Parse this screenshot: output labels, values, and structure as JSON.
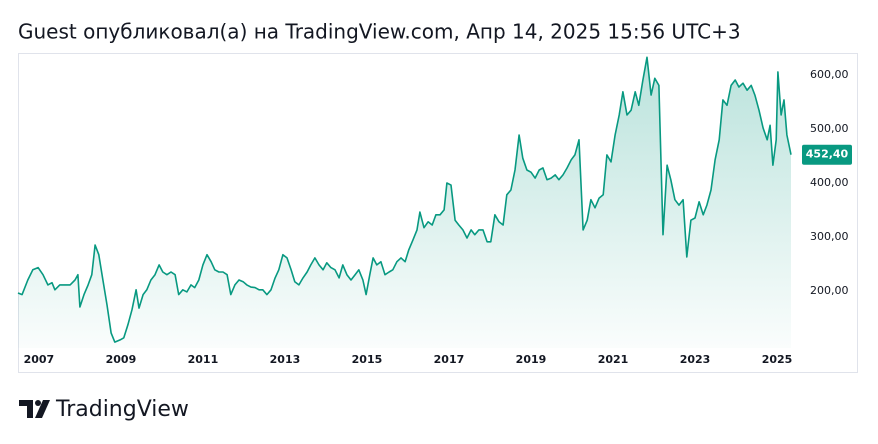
{
  "chart_data": {
    "type": "line",
    "title": "Guest опубликовал(а) на TradingView.com, Апр 14, 2025 15:56 UTC+3",
    "brand": "TradingView",
    "color": "#089981",
    "x": [
      2006.49,
      2006.59,
      2006.73,
      2006.85,
      2006.98,
      2007.1,
      2007.22,
      2007.32,
      2007.39,
      2007.51,
      2007.63,
      2007.76,
      2007.88,
      2007.95,
      2008.0,
      2008.1,
      2008.2,
      2008.29,
      2008.37,
      2008.46,
      2008.56,
      2008.66,
      2008.76,
      2008.85,
      2008.98,
      2009.07,
      2009.17,
      2009.27,
      2009.37,
      2009.44,
      2009.54,
      2009.63,
      2009.73,
      2009.83,
      2009.93,
      2010.02,
      2010.12,
      2010.22,
      2010.32,
      2010.41,
      2010.51,
      2010.61,
      2010.71,
      2010.8,
      2010.9,
      2011.0,
      2011.1,
      2011.2,
      2011.29,
      2011.39,
      2011.49,
      2011.59,
      2011.68,
      2011.78,
      2011.88,
      2011.98,
      2012.07,
      2012.17,
      2012.27,
      2012.37,
      2012.46,
      2012.56,
      2012.66,
      2012.76,
      2012.85,
      2012.95,
      2013.05,
      2013.15,
      2013.24,
      2013.34,
      2013.44,
      2013.54,
      2013.63,
      2013.73,
      2013.83,
      2013.93,
      2014.02,
      2014.12,
      2014.22,
      2014.32,
      2014.41,
      2014.51,
      2014.61,
      2014.71,
      2014.8,
      2014.9,
      2014.98,
      2015.07,
      2015.15,
      2015.24,
      2015.34,
      2015.44,
      2015.54,
      2015.63,
      2015.73,
      2015.83,
      2015.93,
      2016.02,
      2016.12,
      2016.22,
      2016.29,
      2016.39,
      2016.49,
      2016.59,
      2016.68,
      2016.78,
      2016.88,
      2016.95,
      2017.05,
      2017.15,
      2017.24,
      2017.34,
      2017.44,
      2017.54,
      2017.63,
      2017.73,
      2017.83,
      2017.93,
      2018.02,
      2018.12,
      2018.22,
      2018.32,
      2018.41,
      2018.51,
      2018.61,
      2018.71,
      2018.8,
      2018.9,
      2019.0,
      2019.1,
      2019.2,
      2019.29,
      2019.39,
      2019.49,
      2019.59,
      2019.68,
      2019.78,
      2019.88,
      2019.98,
      2020.07,
      2020.17,
      2020.27,
      2020.37,
      2020.46,
      2020.56,
      2020.66,
      2020.76,
      2020.85,
      2020.95,
      2021.05,
      2021.15,
      2021.24,
      2021.34,
      2021.44,
      2021.54,
      2021.63,
      2021.73,
      2021.83,
      2021.93,
      2022.02,
      2022.12,
      2022.22,
      2022.32,
      2022.41,
      2022.51,
      2022.61,
      2022.71,
      2022.8,
      2022.9,
      2023.0,
      2023.1,
      2023.2,
      2023.29,
      2023.39,
      2023.49,
      2023.59,
      2023.68,
      2023.78,
      2023.88,
      2023.98,
      2024.07,
      2024.17,
      2024.27,
      2024.37,
      2024.46,
      2024.56,
      2024.66,
      2024.76,
      2024.83,
      2024.9,
      2024.98,
      2025.02,
      2025.1,
      2025.17,
      2025.24,
      2025.34
    ],
    "values": [
      196,
      193,
      220,
      239,
      243,
      230,
      211,
      215,
      202,
      211,
      211,
      211,
      220,
      230,
      170,
      193,
      211,
      230,
      285,
      267,
      220,
      174,
      122,
      105,
      109,
      113,
      137,
      165,
      202,
      168,
      193,
      202,
      220,
      230,
      248,
      235,
      230,
      235,
      230,
      193,
      202,
      198,
      211,
      206,
      220,
      248,
      267,
      254,
      239,
      235,
      235,
      230,
      193,
      211,
      220,
      217,
      211,
      207,
      206,
      202,
      202,
      193,
      202,
      224,
      239,
      267,
      261,
      239,
      217,
      211,
      224,
      235,
      248,
      261,
      248,
      239,
      252,
      243,
      239,
      224,
      248,
      230,
      220,
      230,
      239,
      220,
      193,
      230,
      261,
      248,
      254,
      230,
      235,
      239,
      254,
      261,
      254,
      276,
      294,
      313,
      346,
      317,
      328,
      322,
      341,
      341,
      350,
      400,
      396,
      331,
      322,
      313,
      298,
      313,
      304,
      313,
      313,
      291,
      291,
      341,
      328,
      322,
      378,
      387,
      424,
      489,
      446,
      424,
      420,
      409,
      424,
      428,
      406,
      409,
      415,
      406,
      415,
      428,
      443,
      452,
      480,
      313,
      331,
      369,
      354,
      372,
      378,
      452,
      439,
      489,
      526,
      569,
      526,
      535,
      569,
      544,
      591,
      633,
      563,
      594,
      581,
      304,
      433,
      406,
      369,
      359,
      369,
      263,
      331,
      335,
      365,
      341,
      359,
      387,
      443,
      480,
      554,
      544,
      581,
      591,
      578,
      585,
      572,
      581,
      563,
      535,
      502,
      480,
      507,
      433,
      480,
      606,
      526,
      554,
      489,
      452.4
    ],
    "last_price": {
      "value": 452.4,
      "label": "452,40"
    },
    "xlim": [
      2006.49,
      2025.56
    ],
    "xticks": [
      2007,
      2009,
      2011,
      2013,
      2015,
      2017,
      2019,
      2021,
      2023,
      2025
    ],
    "ylim": [
      94,
      641
    ],
    "yticks": [
      {
        "value": 200,
        "label": "200,00"
      },
      {
        "value": 300,
        "label": "300,00"
      },
      {
        "value": 400,
        "label": "400,00"
      },
      {
        "value": 500,
        "label": "500,00"
      },
      {
        "value": 600,
        "label": "600,00"
      }
    ]
  }
}
